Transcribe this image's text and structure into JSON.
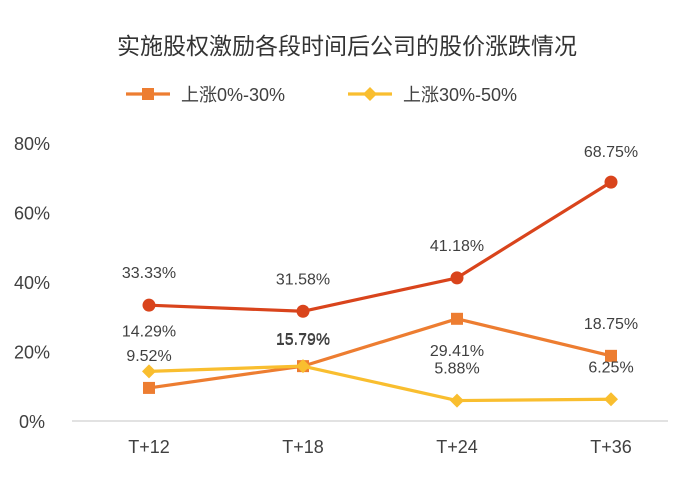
{
  "chart_data": {
    "type": "line",
    "title": "实施股权激励各段时间后公司的股价涨跌情况",
    "xlabel": "",
    "ylabel": "",
    "categories": [
      "T+12",
      "T+18",
      "T+24",
      "T+36"
    ],
    "ylim": [
      0,
      80
    ],
    "yticks": [
      "0%",
      "20%",
      "40%",
      "60%",
      "80%"
    ],
    "yticks_values": [
      0,
      20,
      40,
      60,
      80
    ],
    "grid": false,
    "legend_position": "top",
    "series": [
      {
        "name": "上涨0%-30%",
        "values": [
          9.52,
          15.79,
          29.41,
          18.75
        ],
        "labels": [
          "9.52%",
          "15.79%",
          "29.41%",
          "18.75%"
        ],
        "color": "#ed7d31",
        "marker": "square",
        "in_legend": true
      },
      {
        "name": "上涨30%-50%",
        "values": [
          14.29,
          15.79,
          5.88,
          6.25
        ],
        "labels": [
          "14.29%",
          "15.79%",
          "5.88%",
          "6.25%"
        ],
        "color": "#f9be2f",
        "marker": "diamond",
        "in_legend": true
      },
      {
        "name": "",
        "values": [
          33.33,
          31.58,
          41.18,
          68.75
        ],
        "labels": [
          "33.33%",
          "31.58%",
          "41.18%",
          "68.75%"
        ],
        "color": "#d9441c",
        "marker": "circle",
        "in_legend": false
      }
    ]
  }
}
